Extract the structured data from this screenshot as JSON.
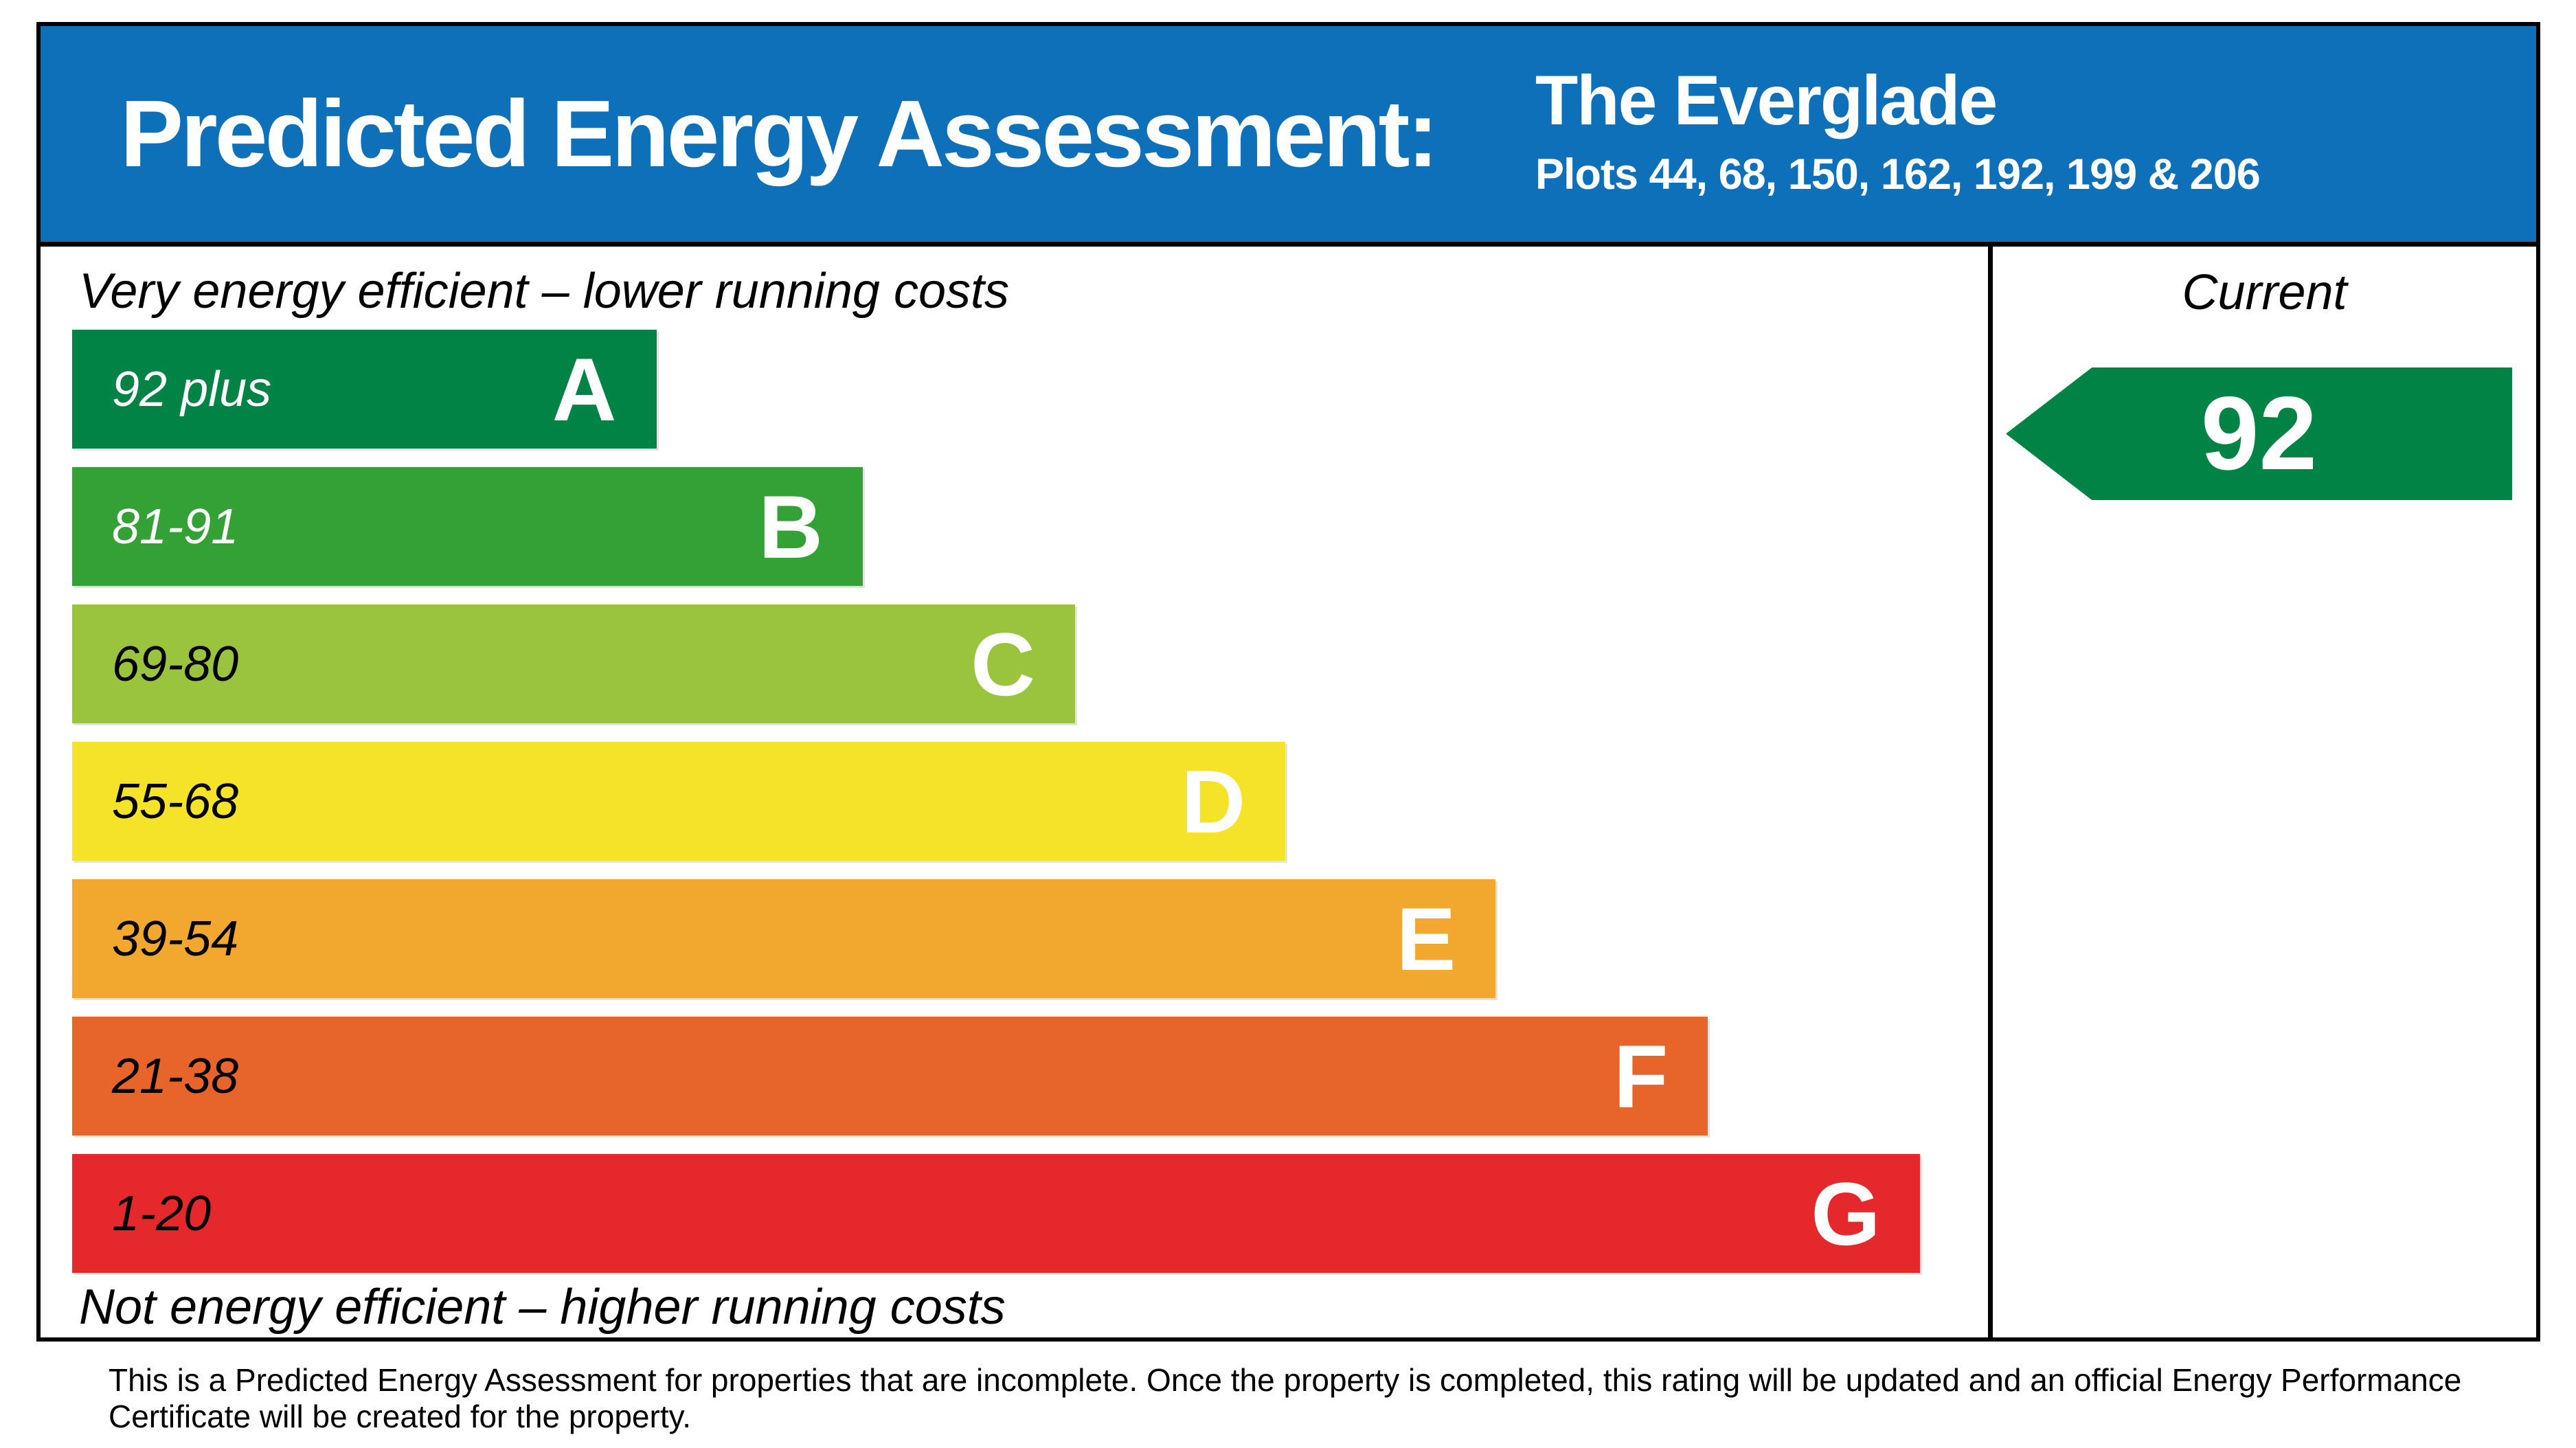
{
  "header": {
    "title": "Predicted Energy Assessment:",
    "property_name": "The Everglade",
    "plots": "Plots 44, 68, 150, 162, 192, 199 & 206",
    "background_color": "#0d70b8"
  },
  "chart_data": {
    "type": "bar",
    "title": "Predicted Energy Assessment",
    "top_caption": "Very energy efficient – lower running costs",
    "bottom_caption": "Not energy efficient – higher running costs",
    "column_header": "Current",
    "current_rating": "92",
    "current_band": "A",
    "arrow_color": "#008345",
    "bands": [
      {
        "letter": "A",
        "range": "92 plus",
        "color": "#008345",
        "range_text_color": "#ffffff",
        "width_pct": 30.0
      },
      {
        "letter": "B",
        "range": "81-91",
        "color": "#33a135",
        "range_text_color": "#ffffff",
        "width_pct": 40.6
      },
      {
        "letter": "C",
        "range": "69-80",
        "color": "#9bc43e",
        "range_text_color": "#000000",
        "width_pct": 51.5
      },
      {
        "letter": "D",
        "range": "55-68",
        "color": "#f5e329",
        "range_text_color": "#000000",
        "width_pct": 62.3
      },
      {
        "letter": "E",
        "range": "39-54",
        "color": "#f2a72e",
        "range_text_color": "#000000",
        "width_pct": 73.1
      },
      {
        "letter": "F",
        "range": "21-38",
        "color": "#e7642a",
        "range_text_color": "#000000",
        "width_pct": 84.0
      },
      {
        "letter": "G",
        "range": "1-20",
        "color": "#e4282b",
        "range_text_color": "#000000",
        "width_pct": 94.9
      }
    ]
  },
  "footer": {
    "line1": "This is a Predicted Energy Assessment for properties that are incomplete. Once the property is completed, this rating will be updated and an official Energy Performance",
    "line2": "Certificate will be created for the property."
  }
}
